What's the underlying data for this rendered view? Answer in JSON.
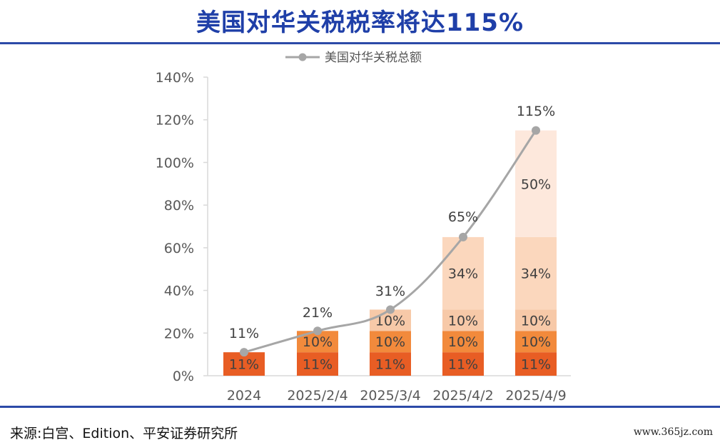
{
  "title": "美国对华关税税率将达115%",
  "source": "来源:白宫、Edition、平安证券研究所",
  "watermark": "www.365jz.com",
  "colors": {
    "title": "#1f3fa8",
    "rule": "#2c4aa8",
    "line": "#a6a6a6",
    "seg": [
      "#e85d24",
      "#f28a3c",
      "#f7c9a8",
      "#fbd7bd",
      "#fde8dc"
    ]
  },
  "chart_data": {
    "type": "bar",
    "stacked": true,
    "categories": [
      "2024",
      "2025/2/4",
      "2025/3/4",
      "2025/4/2",
      "2025/4/9"
    ],
    "segments": [
      [
        11
      ],
      [
        11,
        10
      ],
      [
        11,
        10,
        10
      ],
      [
        11,
        10,
        10,
        34
      ],
      [
        11,
        10,
        10,
        34,
        50
      ]
    ],
    "line_series": {
      "name": "美国对华关税总额",
      "values": [
        11,
        21,
        31,
        65,
        115
      ],
      "labels": [
        "11%",
        "21%",
        "31%",
        "65%",
        "115%"
      ]
    },
    "ylim": [
      0,
      140
    ],
    "yticks": [
      "0%",
      "20%",
      "40%",
      "60%",
      "80%",
      "100%",
      "120%",
      "140%"
    ],
    "legend_position": "top",
    "grid": false
  }
}
